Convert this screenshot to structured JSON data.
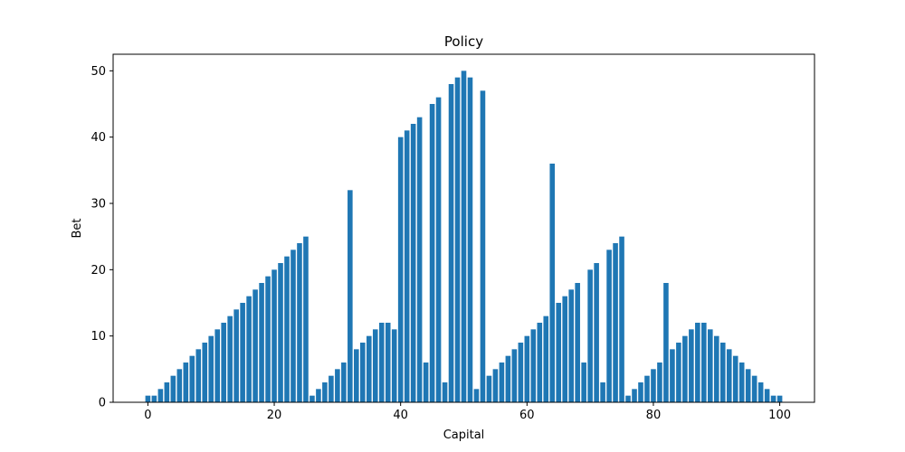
{
  "chart_data": {
    "type": "bar",
    "title": "Policy",
    "xlabel": "Capital",
    "ylabel": "Bet",
    "xlim": [
      -5.5,
      105.5
    ],
    "ylim": [
      0,
      52.5
    ],
    "xticks": [
      0,
      20,
      40,
      60,
      80,
      100
    ],
    "yticks": [
      0,
      10,
      20,
      30,
      40,
      50
    ],
    "bar_color": "#1f77b4",
    "grid": false,
    "x": [
      0,
      1,
      2,
      3,
      4,
      5,
      6,
      7,
      8,
      9,
      10,
      11,
      12,
      13,
      14,
      15,
      16,
      17,
      18,
      19,
      20,
      21,
      22,
      23,
      24,
      25,
      26,
      27,
      28,
      29,
      30,
      31,
      32,
      33,
      34,
      35,
      36,
      37,
      38,
      39,
      40,
      41,
      42,
      43,
      44,
      45,
      46,
      47,
      48,
      49,
      50,
      51,
      52,
      53,
      54,
      55,
      56,
      57,
      58,
      59,
      60,
      61,
      62,
      63,
      64,
      65,
      66,
      67,
      68,
      69,
      70,
      71,
      72,
      73,
      74,
      75,
      76,
      77,
      78,
      79,
      80,
      81,
      82,
      83,
      84,
      85,
      86,
      87,
      88,
      89,
      90,
      91,
      92,
      93,
      94,
      95,
      96,
      97,
      98,
      99,
      100
    ],
    "values": [
      1,
      1,
      2,
      3,
      4,
      5,
      6,
      7,
      8,
      9,
      10,
      11,
      12,
      13,
      14,
      15,
      16,
      17,
      18,
      19,
      20,
      21,
      22,
      23,
      24,
      25,
      1,
      2,
      3,
      4,
      5,
      6,
      32,
      8,
      9,
      10,
      11,
      12,
      12,
      11,
      40,
      41,
      42,
      43,
      6,
      45,
      46,
      3,
      48,
      49,
      50,
      49,
      2,
      47,
      4,
      5,
      6,
      7,
      8,
      9,
      10,
      11,
      12,
      13,
      36,
      15,
      16,
      17,
      18,
      6,
      20,
      21,
      3,
      23,
      24,
      25,
      1,
      2,
      3,
      4,
      5,
      6,
      18,
      8,
      9,
      10,
      11,
      12,
      12,
      11,
      10,
      9,
      8,
      7,
      6,
      5,
      4,
      3,
      2,
      1,
      1
    ]
  }
}
